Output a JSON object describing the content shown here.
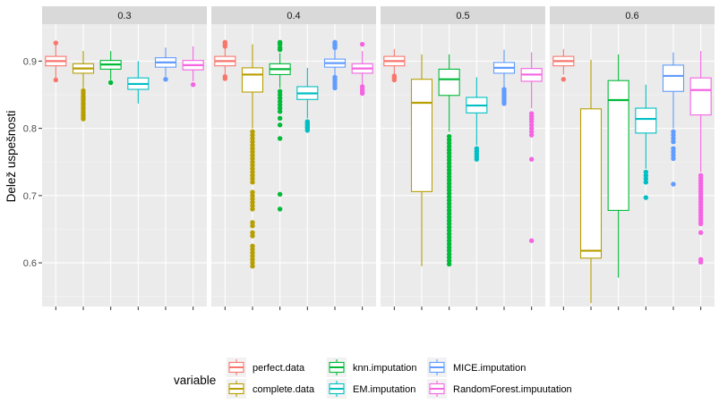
{
  "chart_data": {
    "type": "boxplot",
    "ylabel": "Delež uspešnosti",
    "xlabel": "",
    "ylim": [
      0.535,
      0.955
    ],
    "y_ticks": [
      0.6,
      0.7,
      0.8,
      0.9
    ],
    "y_tick_labels": [
      "0.6",
      "0.7",
      "0.8",
      "0.9"
    ],
    "grid": true,
    "legend": {
      "title": "variable",
      "position": "bottom",
      "entries": [
        "perfect.data",
        "complete.data",
        "knn.imputation",
        "EM.imputation",
        "MICE.imputation",
        "RandomForest.impuutation"
      ]
    },
    "colors": {
      "perfect.data": "#F8766D",
      "complete.data": "#B79F00",
      "knn.imputation": "#00BA38",
      "EM.imputation": "#00BFC4",
      "MICE.imputation": "#619CFF",
      "RandomForest.impuutation": "#F564E3"
    },
    "panels": [
      {
        "label": "0.3",
        "boxes": [
          {
            "series": "perfect.data",
            "lower": 0.875,
            "q1": 0.893,
            "median": 0.9,
            "q3": 0.907,
            "upper": 0.925,
            "outliers": [
              0.872,
              0.927
            ]
          },
          {
            "series": "complete.data",
            "lower": 0.86,
            "q1": 0.882,
            "median": 0.889,
            "q3": 0.896,
            "upper": 0.915,
            "outliers": [
              0.856,
              0.852,
              0.848,
              0.845,
              0.842,
              0.838,
              0.835,
              0.831,
              0.828,
              0.824,
              0.82,
              0.817,
              0.814
            ]
          },
          {
            "series": "knn.imputation",
            "lower": 0.872,
            "q1": 0.888,
            "median": 0.895,
            "q3": 0.901,
            "upper": 0.915,
            "outliers": [
              0.868
            ]
          },
          {
            "series": "EM.imputation",
            "lower": 0.837,
            "q1": 0.858,
            "median": 0.866,
            "q3": 0.875,
            "upper": 0.9,
            "outliers": []
          },
          {
            "series": "MICE.imputation",
            "lower": 0.877,
            "q1": 0.891,
            "median": 0.898,
            "q3": 0.905,
            "upper": 0.92,
            "outliers": [
              0.873
            ]
          },
          {
            "series": "RandomForest.impuutation",
            "lower": 0.87,
            "q1": 0.887,
            "median": 0.894,
            "q3": 0.901,
            "upper": 0.922,
            "outliers": [
              0.865
            ]
          }
        ]
      },
      {
        "label": "0.4",
        "boxes": [
          {
            "series": "perfect.data",
            "lower": 0.88,
            "q1": 0.893,
            "median": 0.9,
            "q3": 0.907,
            "upper": 0.92,
            "outliers": [
              0.922,
              0.925,
              0.928,
              0.877,
              0.874
            ]
          },
          {
            "series": "complete.data",
            "lower": 0.8,
            "q1": 0.854,
            "median": 0.88,
            "q3": 0.89,
            "upper": 0.925,
            "outliers": [
              0.795,
              0.79,
              0.785,
              0.78,
              0.775,
              0.77,
              0.765,
              0.76,
              0.755,
              0.75,
              0.745,
              0.74,
              0.735,
              0.73,
              0.725,
              0.72,
              0.705,
              0.7,
              0.695,
              0.69,
              0.685,
              0.68,
              0.66,
              0.655,
              0.645,
              0.64,
              0.625,
              0.62,
              0.615,
              0.61,
              0.605,
              0.6,
              0.595
            ]
          },
          {
            "series": "knn.imputation",
            "lower": 0.86,
            "q1": 0.88,
            "median": 0.888,
            "q3": 0.896,
            "upper": 0.912,
            "outliers": [
              0.928,
              0.925,
              0.92,
              0.917,
              0.855,
              0.85,
              0.845,
              0.84,
              0.835,
              0.83,
              0.825,
              0.815,
              0.805,
              0.785,
              0.702,
              0.68
            ]
          },
          {
            "series": "EM.imputation",
            "lower": 0.815,
            "q1": 0.843,
            "median": 0.852,
            "q3": 0.862,
            "upper": 0.89,
            "outliers": [
              0.81,
              0.808,
              0.806,
              0.804,
              0.802,
              0.8,
              0.797
            ]
          },
          {
            "series": "MICE.imputation",
            "lower": 0.878,
            "q1": 0.891,
            "median": 0.897,
            "q3": 0.903,
            "upper": 0.918,
            "outliers": [
              0.928,
              0.926,
              0.924,
              0.922,
              0.92,
              0.876,
              0.872,
              0.868,
              0.864,
              0.86
            ]
          },
          {
            "series": "RandomForest.impuutation",
            "lower": 0.865,
            "q1": 0.882,
            "median": 0.889,
            "q3": 0.896,
            "upper": 0.915,
            "outliers": [
              0.925,
              0.862,
              0.858,
              0.855,
              0.852
            ]
          }
        ]
      },
      {
        "label": "0.5",
        "boxes": [
          {
            "series": "perfect.data",
            "lower": 0.88,
            "q1": 0.893,
            "median": 0.9,
            "q3": 0.907,
            "upper": 0.918,
            "outliers": [
              0.878,
              0.875,
              0.872
            ]
          },
          {
            "series": "complete.data",
            "lower": 0.595,
            "q1": 0.706,
            "median": 0.838,
            "q3": 0.873,
            "upper": 0.91,
            "outliers": []
          },
          {
            "series": "knn.imputation",
            "lower": 0.795,
            "q1": 0.849,
            "median": 0.873,
            "q3": 0.888,
            "upper": 0.91,
            "outliers": [
              0.788,
              0.783,
              0.778,
              0.773,
              0.768,
              0.763,
              0.758,
              0.753,
              0.748,
              0.743,
              0.738,
              0.733,
              0.728,
              0.723,
              0.718,
              0.713,
              0.708,
              0.703,
              0.698,
              0.693,
              0.688,
              0.683,
              0.678,
              0.673,
              0.668,
              0.663,
              0.658,
              0.653,
              0.648,
              0.643,
              0.638,
              0.633,
              0.628,
              0.623,
              0.618,
              0.613,
              0.608,
              0.603,
              0.598
            ]
          },
          {
            "series": "EM.imputation",
            "lower": 0.775,
            "q1": 0.823,
            "median": 0.834,
            "q3": 0.846,
            "upper": 0.876,
            "outliers": [
              0.77,
              0.766,
              0.762,
              0.758,
              0.754
            ]
          },
          {
            "series": "MICE.imputation",
            "lower": 0.86,
            "q1": 0.882,
            "median": 0.89,
            "q3": 0.898,
            "upper": 0.917,
            "outliers": [
              0.858,
              0.855,
              0.852,
              0.849,
              0.846,
              0.843,
              0.84,
              0.837
            ]
          },
          {
            "series": "RandomForest.impuutation",
            "lower": 0.83,
            "q1": 0.87,
            "median": 0.88,
            "q3": 0.889,
            "upper": 0.913,
            "outliers": [
              0.822,
              0.818,
              0.814,
              0.81,
              0.805,
              0.8,
              0.795,
              0.79,
              0.754,
              0.633
            ]
          }
        ]
      },
      {
        "label": "0.6",
        "boxes": [
          {
            "series": "perfect.data",
            "lower": 0.88,
            "q1": 0.893,
            "median": 0.9,
            "q3": 0.907,
            "upper": 0.918,
            "outliers": [
              0.873
            ]
          },
          {
            "series": "complete.data",
            "lower": 0.54,
            "q1": 0.607,
            "median": 0.618,
            "q3": 0.829,
            "upper": 0.902,
            "outliers": []
          },
          {
            "series": "knn.imputation",
            "lower": 0.578,
            "q1": 0.678,
            "median": 0.842,
            "q3": 0.871,
            "upper": 0.91,
            "outliers": []
          },
          {
            "series": "EM.imputation",
            "lower": 0.74,
            "q1": 0.793,
            "median": 0.814,
            "q3": 0.83,
            "upper": 0.865,
            "outliers": [
              0.735,
              0.73,
              0.725,
              0.72,
              0.697
            ]
          },
          {
            "series": "MICE.imputation",
            "lower": 0.8,
            "q1": 0.855,
            "median": 0.878,
            "q3": 0.894,
            "upper": 0.913,
            "outliers": [
              0.795,
              0.79,
              0.785,
              0.78,
              0.77,
              0.765,
              0.76,
              0.755,
              0.717
            ]
          },
          {
            "series": "RandomForest.impuutation",
            "lower": 0.735,
            "q1": 0.82,
            "median": 0.857,
            "q3": 0.875,
            "upper": 0.915,
            "outliers": [
              0.73,
              0.726,
              0.722,
              0.718,
              0.714,
              0.71,
              0.706,
              0.702,
              0.698,
              0.694,
              0.69,
              0.686,
              0.682,
              0.678,
              0.674,
              0.67,
              0.666,
              0.662,
              0.658,
              0.645,
              0.605,
              0.601
            ]
          }
        ]
      }
    ]
  }
}
